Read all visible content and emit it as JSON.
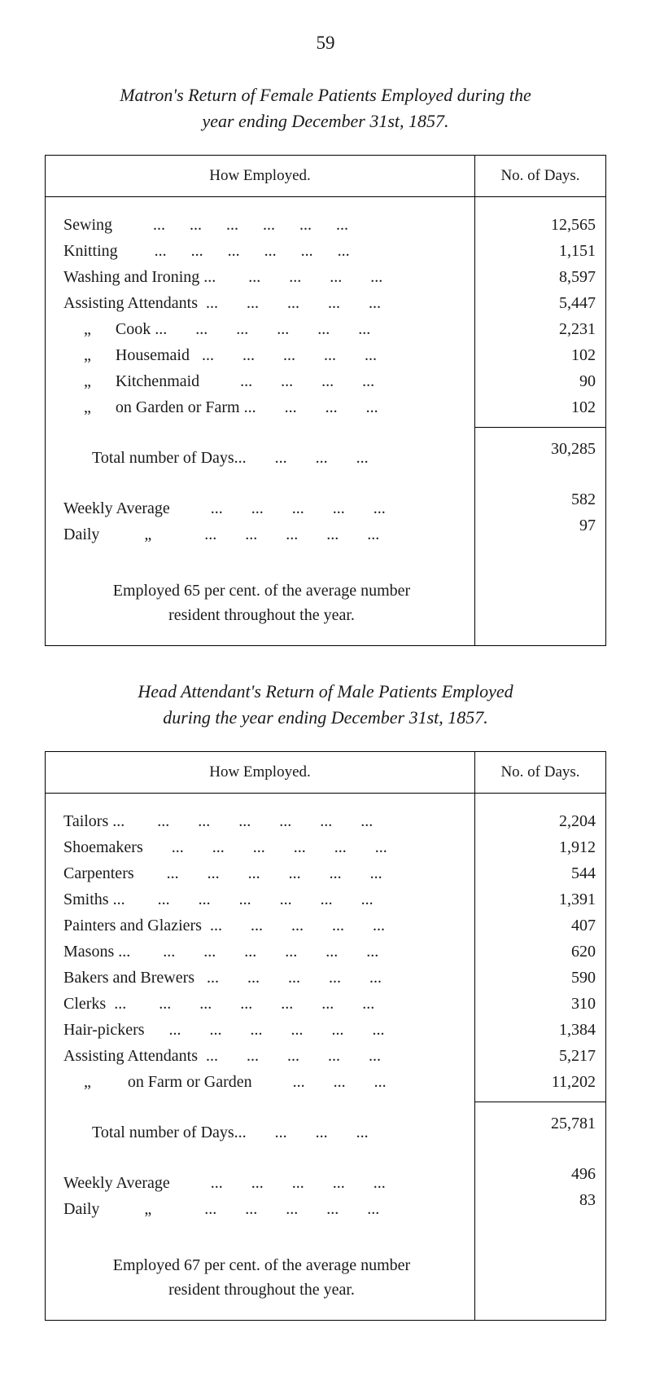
{
  "page_number": "59",
  "section1": {
    "title_line1": "Matron's Return of Female Patients Employed during the",
    "title_line2": "year ending December 31st, 1857.",
    "header_left": "How Employed.",
    "header_right": "No. of Days.",
    "rows": [
      {
        "label": "Sewing          ...      ...      ...      ...      ...      ...",
        "value": "12,565"
      },
      {
        "label": "Knitting         ...      ...      ...      ...      ...      ...",
        "value": "1,151"
      },
      {
        "label": "Washing and Ironing ...        ...       ...       ...       ...",
        "value": "8,597"
      },
      {
        "label": "Assisting Attendants  ...       ...       ...       ...       ...",
        "value": "5,447"
      },
      {
        "label": "     „      Cook ...       ...       ...       ...       ...       ...",
        "value": "2,231"
      },
      {
        "label": "     „      Housemaid   ...       ...       ...       ...       ...",
        "value": "102"
      },
      {
        "label": "     „      Kitchenmaid          ...       ...       ...       ...",
        "value": "90"
      },
      {
        "label": "     „      on Garden or Farm ...       ...       ...       ...",
        "value": "102"
      }
    ],
    "total_label": "Total number of Days...       ...       ...       ...",
    "total_value": "30,285",
    "weekly_label": "Weekly Average          ...       ...       ...       ...       ...",
    "weekly_value": "582",
    "daily_label": "Daily           „             ...       ...       ...       ...       ...",
    "daily_value": "97",
    "footer_line1": "Employed 65 per cent. of the average number",
    "footer_line2": "resident throughout the year."
  },
  "section2": {
    "title_line1": "Head  Attendant's  Return  of  Male  Patients  Employed",
    "title_line2": "during the year ending December 31st, 1857.",
    "header_left": "How Employed.",
    "header_right": "No. of Days.",
    "rows": [
      {
        "label": "Tailors ...        ...       ...       ...       ...       ...       ...",
        "value": "2,204"
      },
      {
        "label": "Shoemakers       ...       ...       ...       ...       ...       ...",
        "value": "1,912"
      },
      {
        "label": "Carpenters        ...       ...       ...       ...       ...       ...",
        "value": "544"
      },
      {
        "label": "Smiths ...        ...       ...       ...       ...       ...       ...",
        "value": "1,391"
      },
      {
        "label": "Painters and Glaziers  ...       ...       ...       ...       ...",
        "value": "407"
      },
      {
        "label": "Masons ...        ...       ...       ...       ...       ...       ...",
        "value": "620"
      },
      {
        "label": "Bakers and Brewers   ...       ...       ...       ...       ...",
        "value": "590"
      },
      {
        "label": "Clerks  ...        ...       ...       ...       ...       ...       ...",
        "value": "310"
      },
      {
        "label": "Hair-pickers      ...       ...       ...       ...       ...       ...",
        "value": "1,384"
      },
      {
        "label": "Assisting Attendants  ...       ...       ...       ...       ...",
        "value": "5,217"
      },
      {
        "label": "     „         on Farm or Garden          ...       ...       ...",
        "value": "11,202"
      }
    ],
    "total_label": "Total number of Days...       ...       ...       ...",
    "total_value": "25,781",
    "weekly_label": "Weekly Average          ...       ...       ...       ...       ...",
    "weekly_value": "496",
    "daily_label": "Daily           „             ...       ...       ...       ...       ...",
    "daily_value": "83",
    "footer_line1": "Employed 67 per cent. of the average number",
    "footer_line2": "resident throughout the year."
  }
}
